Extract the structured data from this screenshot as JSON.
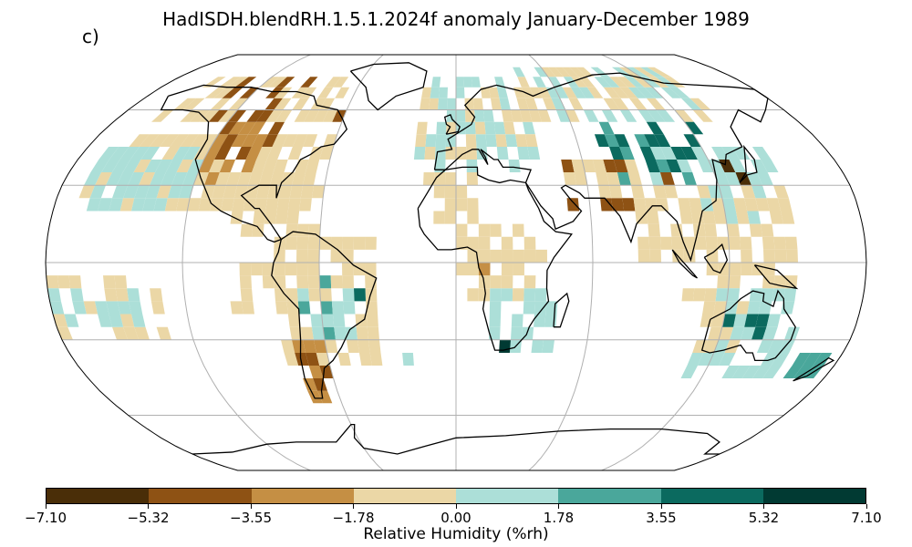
{
  "title": "HadISDH.blendRH.1.5.1.2024f anomaly January-December 1989",
  "panel_label": "c)",
  "colorbar": {
    "label": "Relative Humidity (%rh)",
    "ticks": [
      "−7.10",
      "−5.32",
      "−3.55",
      "−1.78",
      "0.00",
      "1.78",
      "3.55",
      "5.32",
      "7.10"
    ],
    "tick_values": [
      -7.1,
      -5.32,
      -3.55,
      -1.78,
      0.0,
      1.78,
      3.55,
      5.32,
      7.1
    ],
    "colors": [
      "#4a2e08",
      "#8e5214",
      "#c58f44",
      "#ebd7a6",
      "#acdfd8",
      "#4aa79b",
      "#0b6a5f",
      "#013a33"
    ]
  },
  "map": {
    "projection": "Robinson",
    "gridlines": true,
    "coastlines": true
  }
}
